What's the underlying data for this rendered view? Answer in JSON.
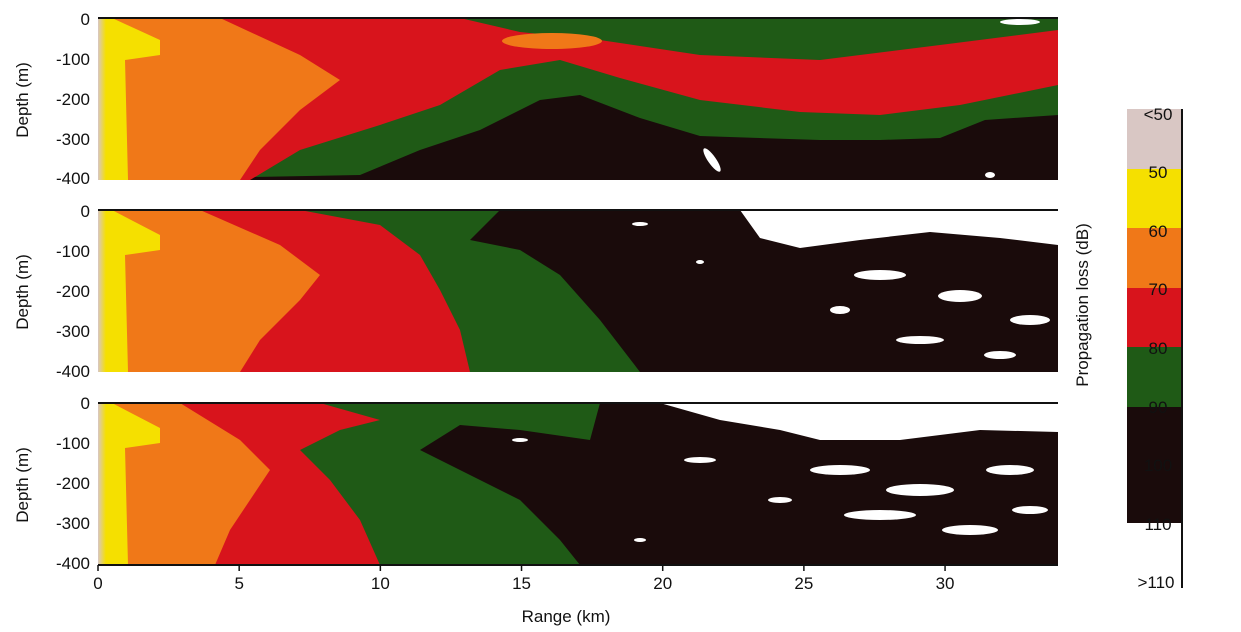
{
  "chart_data": {
    "type": "heatmap",
    "panels": [
      {
        "y_axis_label": "Depth (m)",
        "y_ticks": [
          "0",
          "-100",
          "-200",
          "-300",
          "-400"
        ],
        "ylim": [
          -400,
          0
        ]
      },
      {
        "y_axis_label": "Depth (m)",
        "y_ticks": [
          "0",
          "-100",
          "-200",
          "-300",
          "-400"
        ],
        "ylim": [
          -400,
          0
        ]
      },
      {
        "y_axis_label": "Depth (m)",
        "y_ticks": [
          "0",
          "-100",
          "-200",
          "-300",
          "-400"
        ],
        "ylim": [
          -400,
          0
        ]
      }
    ],
    "x_axis": {
      "label": "Range (km)",
      "ticks": [
        0,
        5,
        10,
        15,
        20,
        25,
        30
      ],
      "tick_labels": [
        "0",
        "5",
        "10",
        "15",
        "20",
        "25",
        "30"
      ],
      "xlim": [
        0,
        34
      ]
    },
    "colorbar": {
      "label": "Propagation loss (dB)",
      "tick_labels": [
        "<50",
        "50",
        "60",
        "70",
        "80",
        "90",
        "100",
        "110",
        ">110"
      ],
      "bands": [
        {
          "range": "<50",
          "color": "#d9c7c4"
        },
        {
          "range": "50-60",
          "color": "#f5e000"
        },
        {
          "range": "60-70",
          "color": "#f07818"
        },
        {
          "range": "70-80",
          "color": "#d8141c"
        },
        {
          "range": "80-90",
          "color": "#1f5a16"
        },
        {
          "range": "90-110",
          "color": "#1a0b0b"
        },
        {
          "range": ">110",
          "color": "#ffffff"
        }
      ]
    }
  }
}
